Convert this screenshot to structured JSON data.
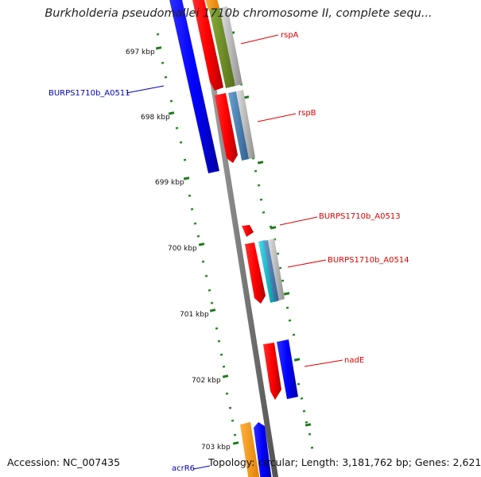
{
  "title": "Burkholderia pseudomallei 1710b chromosome II, complete sequ...",
  "footer": {
    "accession": "Accession: NC_007435",
    "info": "Topology: circular; Length: 3,181,762 bp; Genes: 2,621"
  },
  "ruler": {
    "ticks": [
      "697 kbp",
      "698 kbp",
      "699 kbp",
      "700 kbp",
      "701 kbp",
      "702 kbp",
      "703 kbp"
    ]
  },
  "gene_labels": [
    {
      "name": "rspA",
      "color": "#dd0000"
    },
    {
      "name": "BURPS1710b_A0511",
      "color": "#0000bb"
    },
    {
      "name": "rspB",
      "color": "#dd0000"
    },
    {
      "name": "BURPS1710b_A0513",
      "color": "#dd0000"
    },
    {
      "name": "BURPS1710b_A0514",
      "color": "#dd0000"
    },
    {
      "name": "nadE",
      "color": "#dd0000"
    },
    {
      "name": "acrR6",
      "color": "#0000bb"
    }
  ],
  "colors": {
    "forward_cds": "#ff0000",
    "reverse_cds": "#0000ff",
    "backbone": "#808080",
    "gc_skew": "#2a8a2a",
    "tick": "#1e7a1e",
    "orange_feature": "#ff9900",
    "olive_feature": "#6b8e23",
    "steel_feature": "#4682b4",
    "cyan_feature": "#00c0d0",
    "gray_feature": "#b0b0b0"
  }
}
